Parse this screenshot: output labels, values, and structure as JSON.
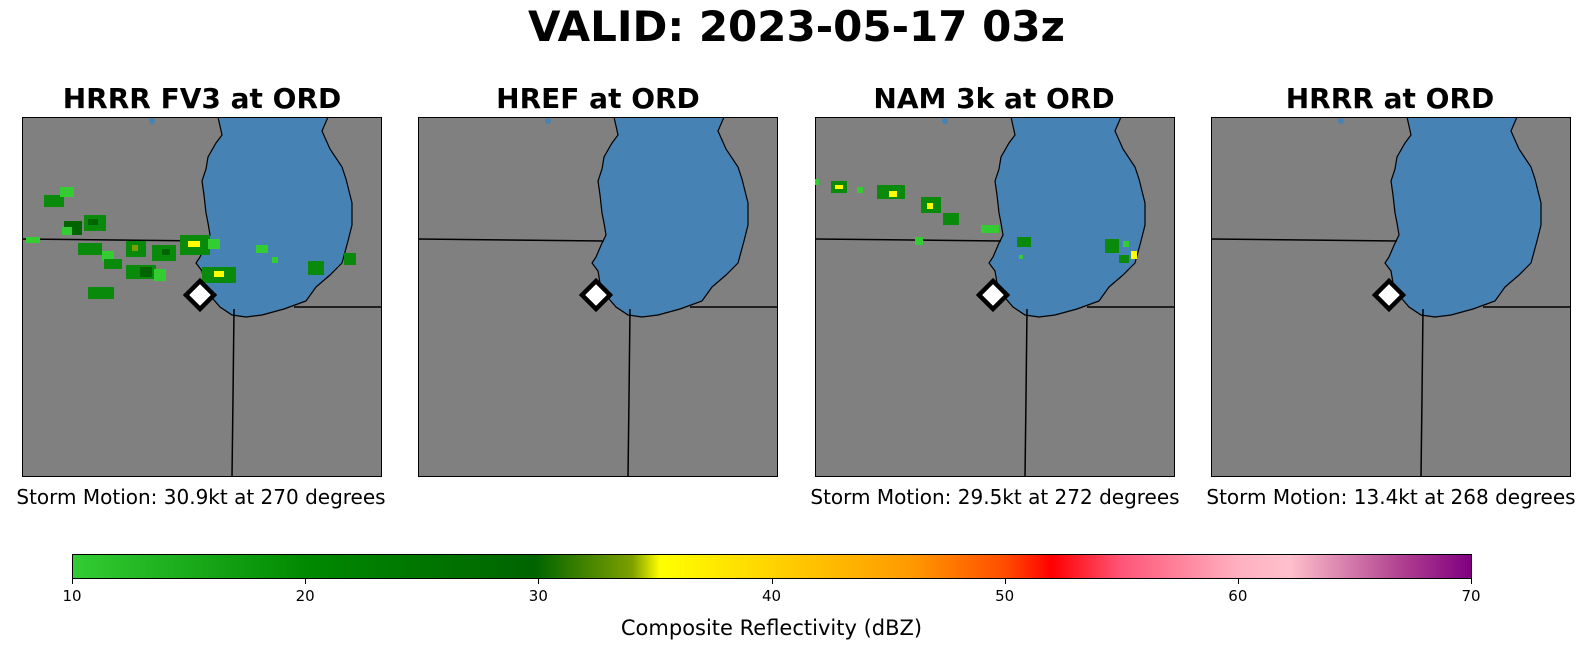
{
  "title": "VALID: 2023-05-17 03z",
  "panels": [
    {
      "title": "HRRR FV3 at ORD",
      "storm_motion": "Storm Motion: 30.9kt at 270 degrees"
    },
    {
      "title": "HREF at ORD",
      "storm_motion": ""
    },
    {
      "title": "NAM 3k at ORD",
      "storm_motion": "Storm Motion: 29.5kt at 272 degrees"
    },
    {
      "title": "HRRR at ORD",
      "storm_motion": "Storm Motion: 13.4kt at 268 degrees"
    }
  ],
  "colorbar": {
    "label": "Composite Reflectivity (dBZ)",
    "ticks": [
      "10",
      "20",
      "30",
      "40",
      "50",
      "60",
      "70"
    ],
    "range": [
      10,
      70
    ]
  },
  "colors": {
    "land": "#808080",
    "lake": "#4682b4",
    "echo_light": "#33cc33",
    "echo_mid": "#0a8a0a",
    "echo_dark": "#006400",
    "echo_yellow": "#ffff00",
    "marker_fill": "#ffffff",
    "marker_edge": "#000000"
  },
  "icons": {
    "station_marker": "diamond-icon"
  }
}
